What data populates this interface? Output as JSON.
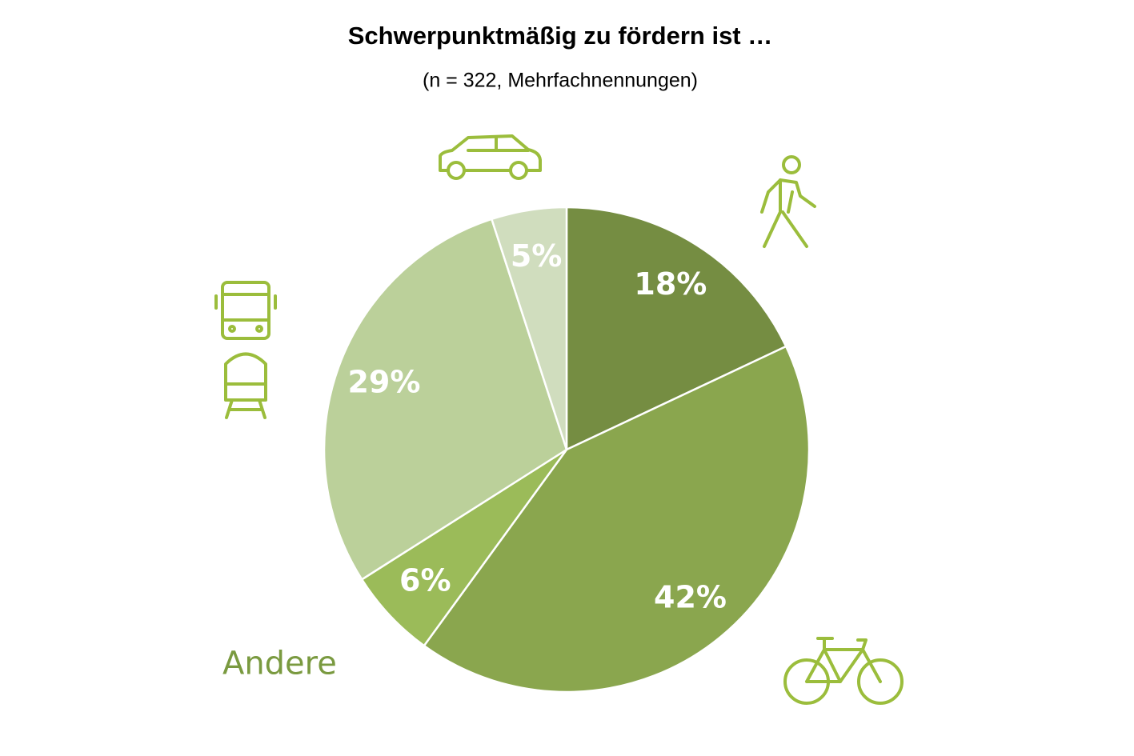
{
  "chart_data": {
    "type": "pie",
    "title": "Schwerpunktmäßig zu fördern ist …",
    "subtitle": "(n = 322, Mehrfachnennungen)",
    "categories": [
      null,
      null,
      "Andere",
      null,
      null
    ],
    "values": [
      18,
      42,
      6,
      29,
      5
    ],
    "value_labels": [
      "18%",
      "42%",
      "6%",
      "29%",
      "5%"
    ],
    "colors": [
      "#758d42",
      "#8aa64e",
      "#9bbb59",
      "#bbd09a",
      "#d0ddbe"
    ]
  }
}
